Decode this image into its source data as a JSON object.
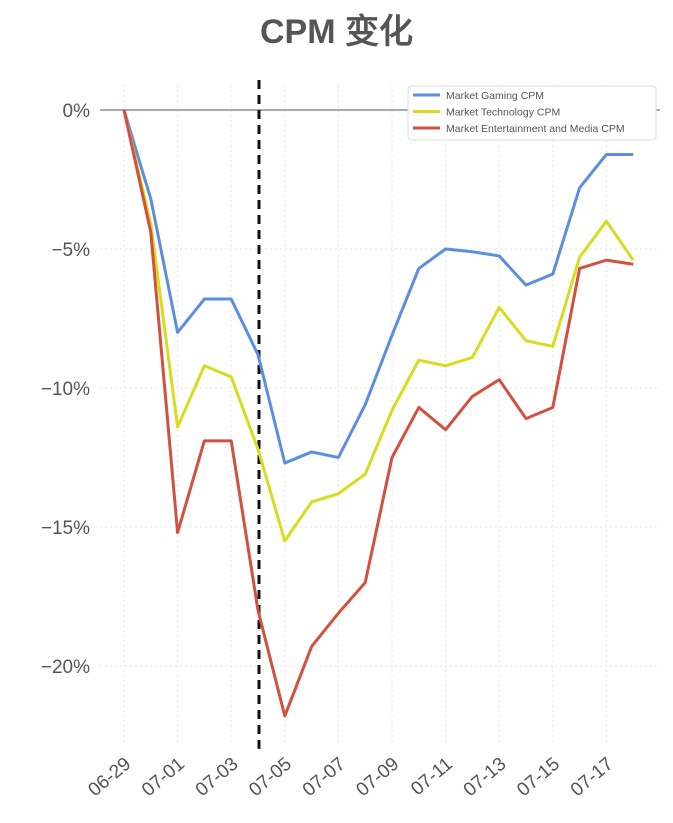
{
  "chart_data": {
    "type": "line",
    "title": "CPM 变化",
    "xlabel": "",
    "ylabel": "",
    "x": [
      "06-29",
      "06-30",
      "07-01",
      "07-02",
      "07-03",
      "07-04",
      "07-05",
      "07-06",
      "07-07",
      "07-08",
      "07-09",
      "07-10",
      "07-11",
      "07-12",
      "07-13",
      "07-14",
      "07-15",
      "07-16",
      "07-17",
      "07-18"
    ],
    "xticks": [
      "06-29",
      "07-01",
      "07-03",
      "07-05",
      "07-07",
      "07-09",
      "07-11",
      "07-13",
      "07-15",
      "07-17"
    ],
    "yticks": [
      0,
      -5,
      -10,
      -15,
      -20
    ],
    "ytick_labels": [
      "0%",
      "−5%",
      "−10%",
      "−15%",
      "−20%"
    ],
    "ylim": [
      -22.8,
      0.9
    ],
    "grid": true,
    "legend_position": "top-right",
    "vline": {
      "x": "07-04",
      "style": "dashed",
      "color": "#111111"
    },
    "series": [
      {
        "name": "Market Gaming CPM",
        "color": "#5b8ee0",
        "values": [
          0,
          -3.2,
          -8.0,
          -6.8,
          -6.8,
          -8.8,
          -12.7,
          -12.3,
          -12.5,
          -10.6,
          -8.1,
          -5.7,
          -5.0,
          -5.1,
          -5.25,
          -6.3,
          -5.9,
          -2.8,
          -1.6,
          -1.6
        ]
      },
      {
        "name": "Market Technology CPM",
        "color": "#d8dc1e",
        "values": [
          0,
          -4.1,
          -11.4,
          -9.2,
          -9.6,
          -12.2,
          -15.5,
          -14.1,
          -13.8,
          -13.1,
          -10.8,
          -9.0,
          -9.2,
          -8.9,
          -7.1,
          -8.3,
          -8.5,
          -5.3,
          -4.0,
          -5.4
        ]
      },
      {
        "name": "Market Entertainment and Media CPM",
        "color": "#d2503f",
        "values": [
          0,
          -4.4,
          -15.2,
          -11.9,
          -11.9,
          -18.0,
          -21.8,
          -19.3,
          -18.1,
          -17.0,
          -12.5,
          -10.7,
          -11.5,
          -10.3,
          -9.7,
          -11.1,
          -10.7,
          -5.7,
          -5.4,
          -5.55
        ]
      }
    ]
  }
}
